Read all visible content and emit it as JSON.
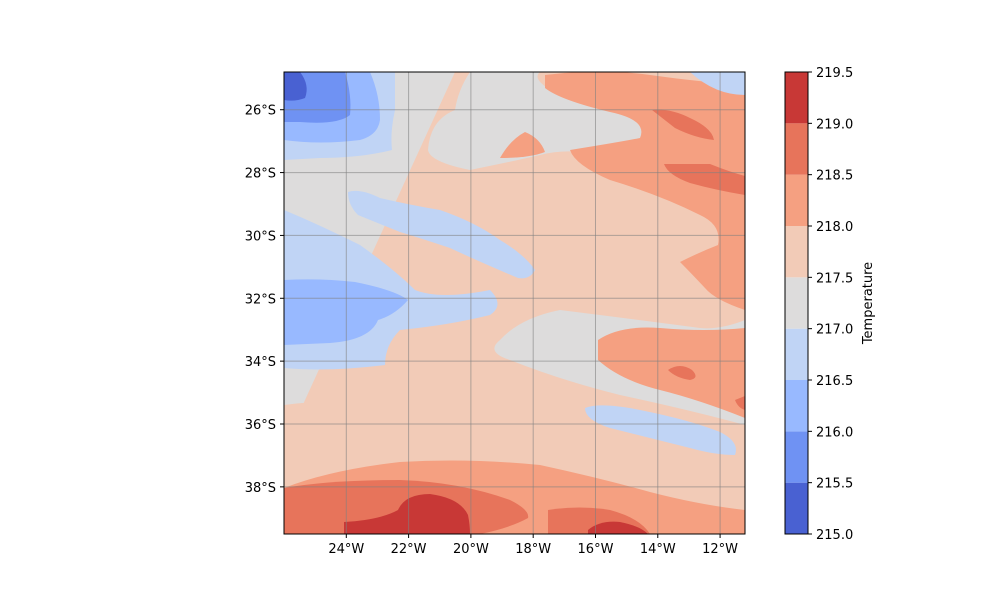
{
  "chart_data": {
    "type": "heatmap",
    "subtype": "filled-contour-map",
    "title": "",
    "xlabel": "",
    "ylabel": "",
    "colorbar_label": "Temperature",
    "colormap": "coolwarm",
    "xlim": [
      -26.0,
      -11.2
    ],
    "ylim": [
      -39.5,
      -24.8
    ],
    "x_ticks": [
      {
        "value": -24,
        "label": "24°W"
      },
      {
        "value": -22,
        "label": "22°W"
      },
      {
        "value": -20,
        "label": "20°W"
      },
      {
        "value": -18,
        "label": "18°W"
      },
      {
        "value": -16,
        "label": "16°W"
      },
      {
        "value": -14,
        "label": "14°W"
      },
      {
        "value": -12,
        "label": "12°W"
      }
    ],
    "y_ticks": [
      {
        "value": -26,
        "label": "26°S"
      },
      {
        "value": -28,
        "label": "28°S"
      },
      {
        "value": -30,
        "label": "30°S"
      },
      {
        "value": -32,
        "label": "32°S"
      },
      {
        "value": -34,
        "label": "34°S"
      },
      {
        "value": -36,
        "label": "36°S"
      },
      {
        "value": -38,
        "label": "38°S"
      }
    ],
    "grid": true,
    "levels": [
      215.0,
      215.5,
      216.0,
      216.5,
      217.0,
      217.5,
      218.0,
      218.5,
      219.0,
      219.5
    ],
    "level_labels": [
      "215.0",
      "215.5",
      "216.0",
      "216.5",
      "217.0",
      "217.5",
      "218.0",
      "218.5",
      "219.0",
      "219.5"
    ],
    "level_colors": [
      "#4961d2",
      "#6f92f3",
      "#98b9ff",
      "#c0d4f5",
      "#dddcdc",
      "#f2cbb7",
      "#f5a081",
      "#e7745b",
      "#c83836"
    ],
    "regions": [
      {
        "level_index": 0,
        "lon": -25.6,
        "lat": -25.5
      },
      {
        "level_index": 1,
        "lon": -25.0,
        "lat": -25.8
      },
      {
        "level_index": 2,
        "lon": -25.0,
        "lat": -32.7
      },
      {
        "level_index": 3,
        "lon": -23.5,
        "lat": -30.5
      },
      {
        "level_index": 4,
        "lon": -21.0,
        "lat": -27.5
      },
      {
        "level_index": 5,
        "lon": -17.5,
        "lat": -29.0
      },
      {
        "level_index": 6,
        "lon": -14.0,
        "lat": -34.0
      },
      {
        "level_index": 7,
        "lon": -23.0,
        "lat": -38.8
      },
      {
        "level_index": 8,
        "lon": -21.0,
        "lat": -39.2
      }
    ]
  }
}
